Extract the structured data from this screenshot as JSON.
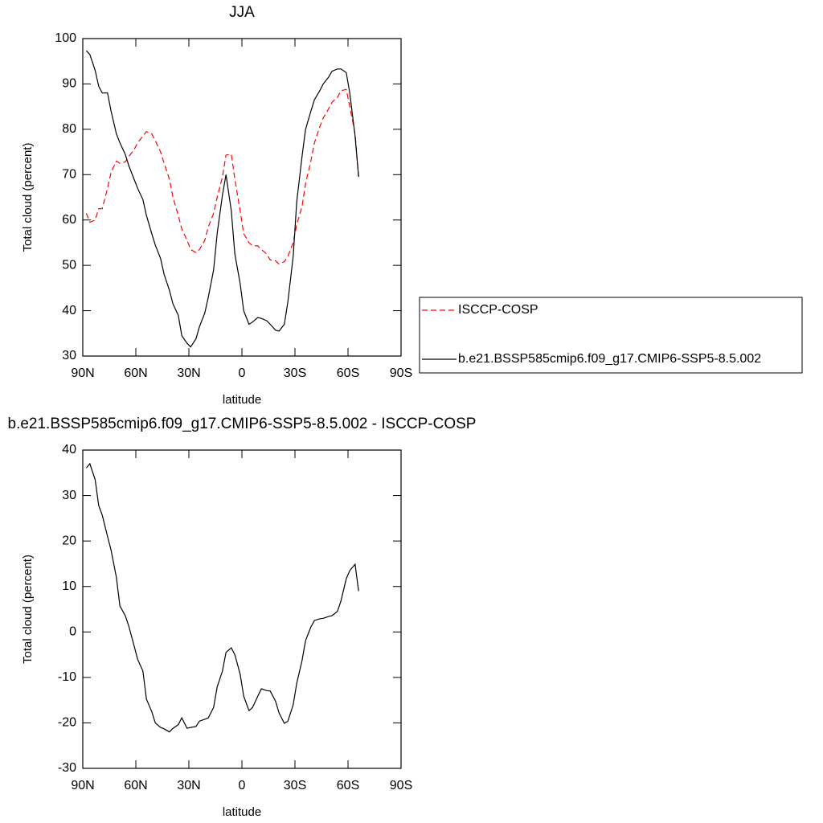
{
  "chart_data": [
    {
      "type": "line",
      "title": "JJA",
      "xlabel": "latitude",
      "ylabel": "Total cloud (percent)",
      "x": [
        88,
        86,
        83,
        81,
        79,
        76,
        74,
        71,
        69,
        66,
        64,
        61,
        59,
        56,
        54,
        51,
        49,
        46,
        44,
        41,
        39,
        36,
        34,
        31,
        29,
        26,
        24,
        21,
        19,
        16,
        14,
        11,
        9,
        6,
        4,
        1,
        -1,
        -4,
        -6,
        -9,
        -11,
        -14,
        -16,
        -19,
        -21,
        -24,
        -26,
        -29,
        -31,
        -34,
        -36,
        -39,
        -41,
        -44,
        -46,
        -49,
        -51,
        -54,
        -56,
        -59,
        -61,
        -64,
        -66
      ],
      "series": [
        {
          "name": "ISCCP-COSP",
          "color": "#ff0000",
          "line_style": "dashed",
          "values": [
            61.5,
            59.5,
            60,
            62.5,
            62.5,
            67,
            70.5,
            73,
            72.5,
            72.8,
            74,
            75.5,
            77,
            78.5,
            79.5,
            79,
            77.5,
            75,
            72.5,
            69,
            65,
            61,
            58,
            55.5,
            53.5,
            52.8,
            53.5,
            55.5,
            58.5,
            61.5,
            65,
            69.5,
            74.3,
            74.5,
            69,
            62,
            57,
            55,
            54.3,
            54.3,
            53.5,
            52.5,
            51.2,
            51,
            50.3,
            50.8,
            52,
            55,
            59,
            63,
            68,
            73,
            77,
            80.5,
            82.5,
            84.5,
            86,
            87,
            88.5,
            88.8,
            85,
            79,
            69.5
          ]
        },
        {
          "name": "b.e21.BSSP585cmip6.f09_g17.CMIP6-SSP5-8.5.002",
          "color": "#000000",
          "line_style": "solid",
          "values": [
            97.3,
            96.5,
            93,
            89.5,
            88,
            88,
            84,
            79,
            77,
            74.5,
            72,
            69,
            67,
            64.5,
            61,
            57,
            54.5,
            51.5,
            48,
            44.5,
            41.5,
            39,
            34.5,
            32.8,
            32,
            33.8,
            36.5,
            39.5,
            43,
            49,
            57,
            65.5,
            70,
            62,
            52.5,
            46,
            40,
            37,
            37.5,
            38.5,
            38.3,
            37.8,
            37,
            35.7,
            35.5,
            37,
            42,
            52,
            64,
            74,
            80,
            84,
            86.5,
            88.5,
            90,
            91.5,
            92.8,
            93.3,
            93.3,
            92.5,
            88,
            78.5,
            69.5
          ]
        }
      ],
      "xlim": [
        90,
        -90
      ],
      "xticks": [
        {
          "value": 90,
          "label": "90N"
        },
        {
          "value": 60,
          "label": "60N"
        },
        {
          "value": 30,
          "label": "30N"
        },
        0,
        {
          "value": -30,
          "label": "30S"
        },
        {
          "value": -60,
          "label": "60S"
        },
        {
          "value": -90,
          "label": "90S"
        }
      ],
      "ylim": [
        30,
        100
      ],
      "yticks": [
        30,
        40,
        50,
        60,
        70,
        80,
        90,
        100
      ],
      "legend": "right"
    },
    {
      "type": "line",
      "title": "b.e21.BSSP585cmip6.f09_g17.CMIP6-SSP5-8.5.002 - ISCCP-COSP",
      "xlabel": "latitude",
      "ylabel": "Total cloud (percent)",
      "x": [
        88,
        86,
        83,
        81,
        79,
        76,
        74,
        71,
        69,
        66,
        64,
        61,
        59,
        56,
        54,
        51,
        49,
        46,
        44,
        41,
        39,
        36,
        34,
        31,
        29,
        26,
        24,
        21,
        19,
        16,
        14,
        11,
        9,
        6,
        4,
        1,
        -1,
        -4,
        -6,
        -9,
        -11,
        -14,
        -16,
        -19,
        -21,
        -24,
        -26,
        -29,
        -31,
        -34,
        -36,
        -39,
        -41,
        -44,
        -46,
        -49,
        -51,
        -54,
        -56,
        -59,
        -61,
        -64,
        -66
      ],
      "color": "#000000",
      "values": [
        36.1,
        37,
        33.5,
        27.8,
        25.7,
        21,
        18,
        12,
        5.7,
        3.6,
        1.3,
        -3,
        -6,
        -8.6,
        -14.8,
        -17.5,
        -20,
        -21,
        -21.3,
        -22,
        -21.2,
        -20.4,
        -18.9,
        -21.2,
        -21,
        -20.8,
        -19.6,
        -19.2,
        -18.9,
        -16.6,
        -12.1,
        -8.6,
        -4.5,
        -3.5,
        -5,
        -9.3,
        -14.1,
        -17.3,
        -16.6,
        -14.1,
        -12.5,
        -12.9,
        -13,
        -15.2,
        -17.8,
        -20.1,
        -19.6,
        -16,
        -11.3,
        -6.3,
        -1.9,
        1.1,
        2.5,
        2.9,
        3,
        3.4,
        3.6,
        4.5,
        6.8,
        11.7,
        13.5,
        14.9,
        9
      ],
      "xlim": [
        90,
        -90
      ],
      "xticks": [
        {
          "value": 90,
          "label": "90N"
        },
        {
          "value": 60,
          "label": "60N"
        },
        {
          "value": 30,
          "label": "30N"
        },
        0,
        {
          "value": -30,
          "label": "30S"
        },
        {
          "value": -60,
          "label": "60S"
        },
        {
          "value": -90,
          "label": "90S"
        }
      ],
      "ylim": [
        -30,
        40
      ],
      "yticks": [
        -30,
        -20,
        -10,
        0,
        10,
        20,
        30,
        40
      ]
    }
  ]
}
